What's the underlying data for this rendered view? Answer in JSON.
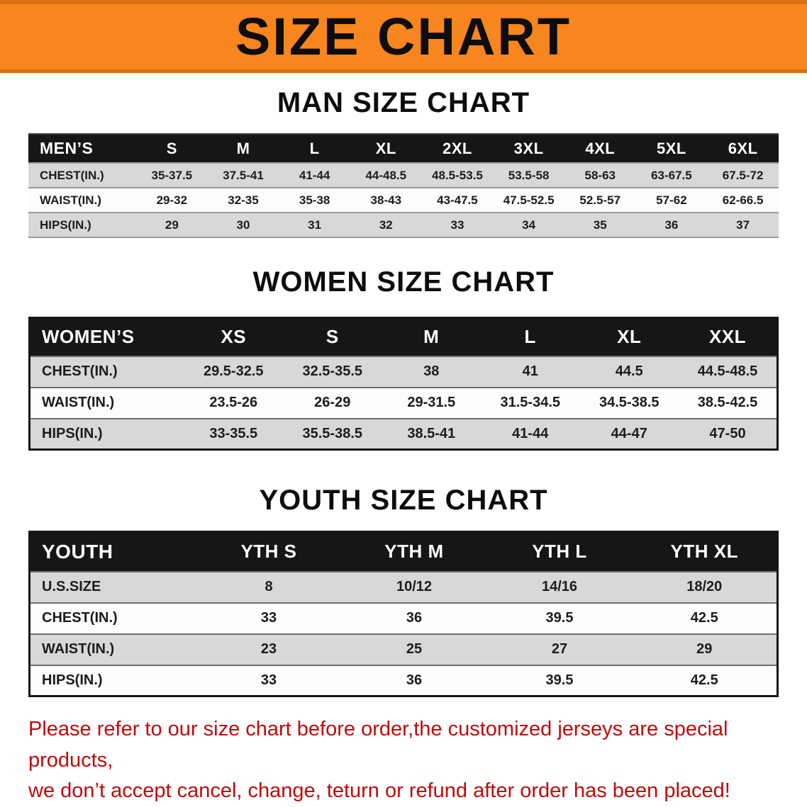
{
  "banner": {
    "title": "SIZE CHART"
  },
  "colors": {
    "banner_bg": "#F6861D",
    "banner_edge": "#DA7110",
    "table_header_bg": "#161616",
    "shaded_row_bg": "#D8D8D8",
    "footer_text": "#C00A0A"
  },
  "chart_data": [
    {
      "type": "table",
      "title": "MAN SIZE CHART",
      "corner": "MEN’S",
      "columns": [
        "S",
        "M",
        "L",
        "XL",
        "2XL",
        "3XL",
        "4XL",
        "5XL",
        "6XL"
      ],
      "rows": [
        {
          "label": "CHEST(IN.)",
          "values": [
            "35-37.5",
            "37.5-41",
            "41-44",
            "44-48.5",
            "48.5-53.5",
            "53.5-58",
            "58-63",
            "63-67.5",
            "67.5-72"
          ]
        },
        {
          "label": "WAIST(IN.)",
          "values": [
            "29-32",
            "32-35",
            "35-38",
            "38-43",
            "43-47.5",
            "47.5-52.5",
            "52.5-57",
            "57-62",
            "62-66.5"
          ]
        },
        {
          "label": "HIPS(IN.)",
          "values": [
            "29",
            "30",
            "31",
            "32",
            "33",
            "34",
            "35",
            "36",
            "37"
          ]
        }
      ]
    },
    {
      "type": "table",
      "title": "WOMEN SIZE CHART",
      "corner": "WOMEN’S",
      "columns": [
        "XS",
        "S",
        "M",
        "L",
        "XL",
        "XXL"
      ],
      "rows": [
        {
          "label": "CHEST(IN.)",
          "values": [
            "29.5-32.5",
            "32.5-35.5",
            "38",
            "41",
            "44.5",
            "44.5-48.5"
          ]
        },
        {
          "label": "WAIST(IN.)",
          "values": [
            "23.5-26",
            "26-29",
            "29-31.5",
            "31.5-34.5",
            "34.5-38.5",
            "38.5-42.5"
          ]
        },
        {
          "label": "HIPS(IN.)",
          "values": [
            "33-35.5",
            "35.5-38.5",
            "38.5-41",
            "41-44",
            "44-47",
            "47-50"
          ]
        }
      ]
    },
    {
      "type": "table",
      "title": "YOUTH SIZE CHART",
      "corner": "YOUTH",
      "columns": [
        "YTH S",
        "YTH M",
        "YTH L",
        "YTH XL"
      ],
      "rows": [
        {
          "label": "U.S.SIZE",
          "values": [
            "8",
            "10/12",
            "14/16",
            "18/20"
          ]
        },
        {
          "label": "CHEST(IN.)",
          "values": [
            "33",
            "36",
            "39.5",
            "42.5"
          ]
        },
        {
          "label": "WAIST(IN.)",
          "values": [
            "23",
            "25",
            "27",
            "29"
          ]
        },
        {
          "label": "HIPS(IN.)",
          "values": [
            "33",
            "36",
            "39.5",
            "42.5"
          ]
        }
      ]
    }
  ],
  "footer": {
    "lines": [
      "Please refer to our size chart before order,the customized jerseys are special products,",
      "we don’t accept cancel, change, teturn or refund after order has been placed!"
    ]
  }
}
